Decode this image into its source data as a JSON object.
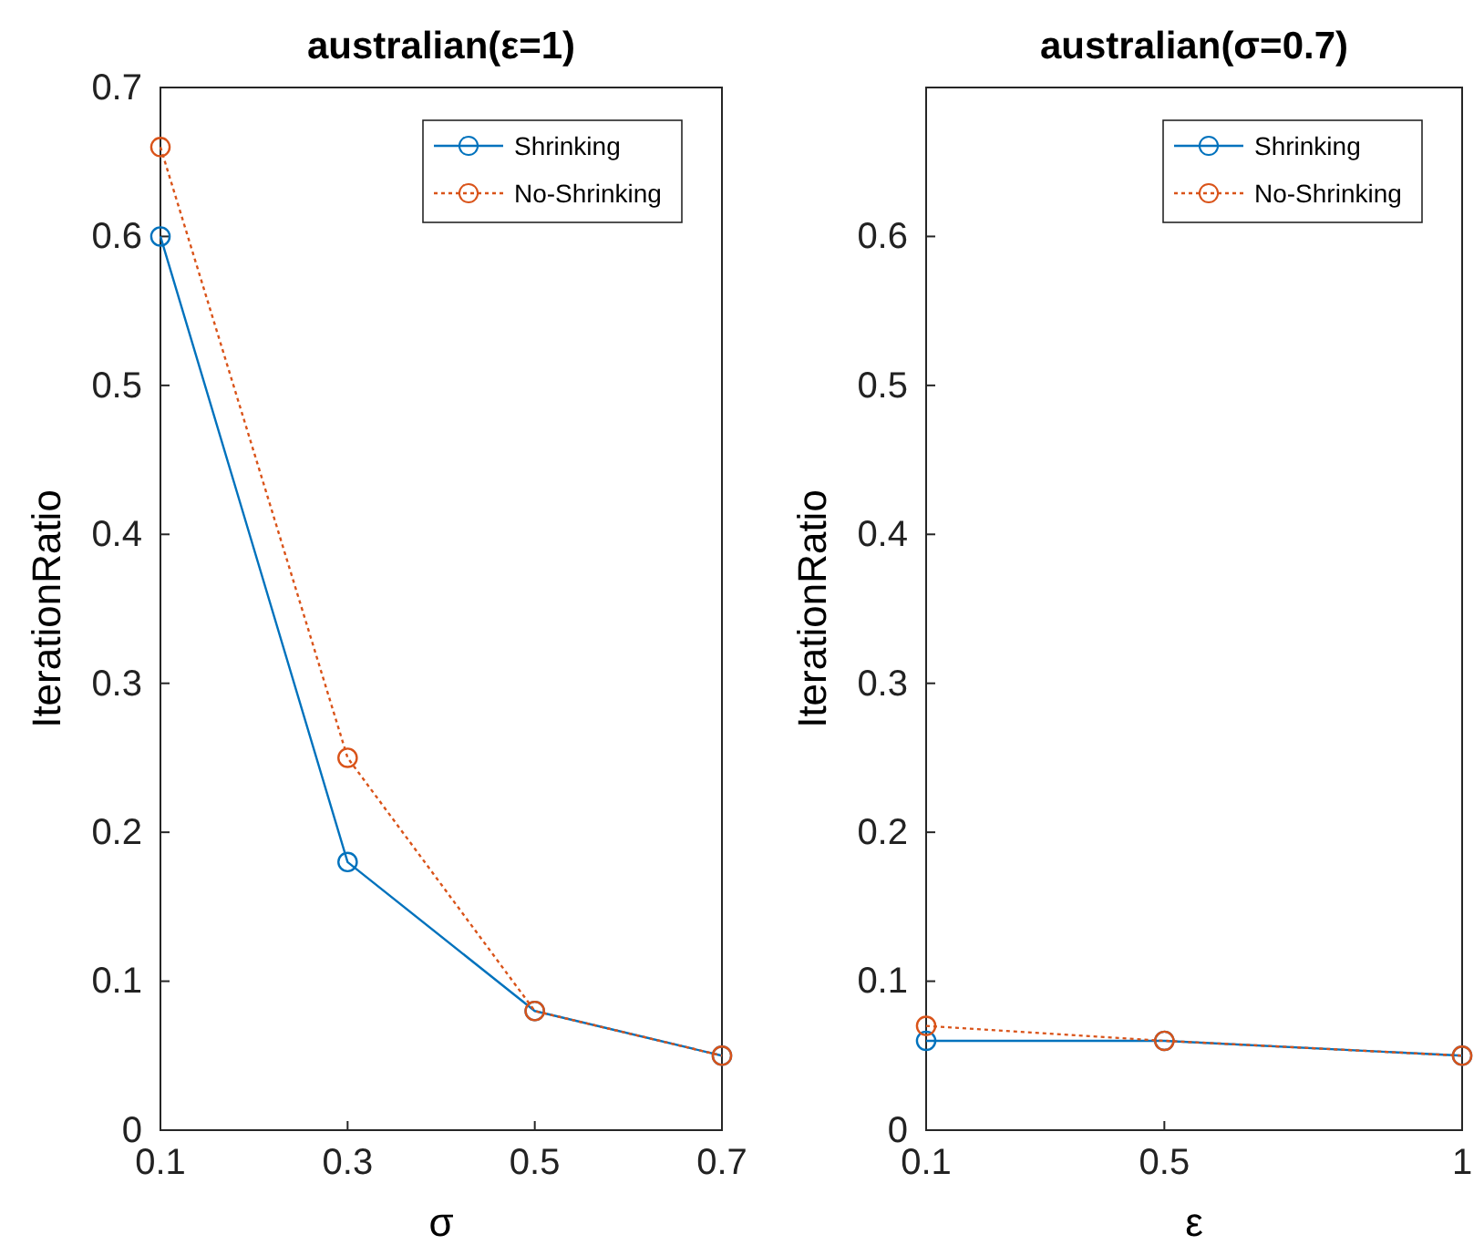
{
  "chart_data": [
    {
      "type": "line",
      "title": "australian(ε=1)",
      "xlabel": "σ",
      "ylabel": "IterationRatio",
      "x": [
        0.1,
        0.3,
        0.5,
        0.7
      ],
      "xlim": [
        0.1,
        0.7
      ],
      "xticks": [
        0.1,
        0.3,
        0.5,
        0.7
      ],
      "ylim": [
        0,
        0.7
      ],
      "yticks": [
        0,
        0.1,
        0.2,
        0.3,
        0.4,
        0.5,
        0.6,
        0.7
      ],
      "marker": "circle",
      "legend": "top right",
      "series": [
        {
          "name": "Shrinking",
          "color": "#0072bd",
          "line_style": "solid",
          "values": [
            0.6,
            0.18,
            0.08,
            0.05
          ]
        },
        {
          "name": "No-Shrinking",
          "color": "#d95319",
          "line_style": "dotted",
          "values": [
            0.66,
            0.25,
            0.08,
            0.05
          ]
        }
      ]
    },
    {
      "type": "line",
      "title": "australian(σ=0.7)",
      "xlabel": "ε",
      "ylabel": "IterationRatio",
      "x": [
        0.1,
        0.5,
        1
      ],
      "xlim": [
        0.1,
        1
      ],
      "xticks": [
        0.1,
        0.5,
        1
      ],
      "ylim": [
        0,
        0.7
      ],
      "yticks": [
        0,
        0.1,
        0.2,
        0.3,
        0.4,
        0.5,
        0.6
      ],
      "marker": "circle",
      "legend": "top right",
      "series": [
        {
          "name": "Shrinking",
          "color": "#0072bd",
          "line_style": "solid",
          "values": [
            0.06,
            0.06,
            0.05
          ]
        },
        {
          "name": "No-Shrinking",
          "color": "#d95319",
          "line_style": "dotted",
          "values": [
            0.07,
            0.06,
            0.05
          ]
        }
      ]
    }
  ]
}
